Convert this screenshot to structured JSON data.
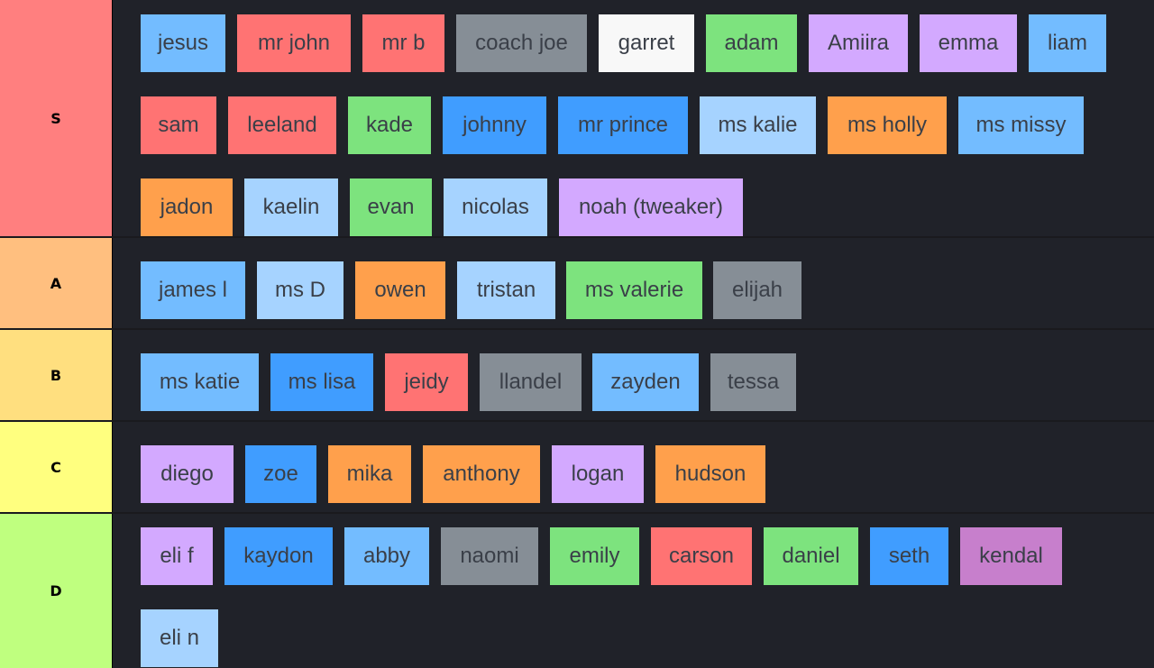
{
  "colors": {
    "background": "#202229",
    "tier_S": "#ff7f7f",
    "tier_A": "#ffbf7f",
    "tier_B": "#ffdf7f",
    "tier_C": "#ffff7f",
    "tier_D": "#bfff7f",
    "chip_red": "#ff7373",
    "chip_blue": "#73bcff",
    "chip_darkblue": "#409dff",
    "chip_lightblue": "#a6d3ff",
    "chip_gray": "#868e96",
    "chip_white": "#f8f8f8",
    "chip_green": "#7de37e",
    "chip_purple": "#d3a9ff",
    "chip_orange": "#ffa04c",
    "chip_mauve": "#c77fcc"
  },
  "tiers": [
    {
      "label": "S",
      "items": [
        {
          "name": "jesus",
          "color": "#73bcff"
        },
        {
          "name": "mr john",
          "color": "#ff7373"
        },
        {
          "name": "mr b",
          "color": "#ff7373"
        },
        {
          "name": "coach joe",
          "color": "#868e96"
        },
        {
          "name": "garret",
          "color": "#f8f8f8"
        },
        {
          "name": "adam",
          "color": "#7de37e"
        },
        {
          "name": "Amiira",
          "color": "#d3a9ff"
        },
        {
          "name": "emma",
          "color": "#d3a9ff"
        },
        {
          "name": "liam",
          "color": "#73bcff"
        },
        {
          "name": "sam",
          "color": "#ff7373"
        },
        {
          "name": "leeland",
          "color": "#ff7373"
        },
        {
          "name": "kade",
          "color": "#7de37e"
        },
        {
          "name": "johnny",
          "color": "#409dff"
        },
        {
          "name": "mr prince",
          "color": "#409dff"
        },
        {
          "name": "ms kalie",
          "color": "#a6d3ff"
        },
        {
          "name": "ms holly",
          "color": "#ffa04c"
        },
        {
          "name": "ms missy",
          "color": "#73bcff"
        },
        {
          "name": "jadon",
          "color": "#ffa04c"
        },
        {
          "name": "kaelin",
          "color": "#a6d3ff"
        },
        {
          "name": "evan",
          "color": "#7de37e"
        },
        {
          "name": "nicolas",
          "color": "#a6d3ff"
        },
        {
          "name": "noah (tweaker)",
          "color": "#d3a9ff"
        }
      ]
    },
    {
      "label": "A",
      "items": [
        {
          "name": "james l",
          "color": "#73bcff"
        },
        {
          "name": "ms D",
          "color": "#a6d3ff"
        },
        {
          "name": "owen",
          "color": "#ffa04c"
        },
        {
          "name": "tristan",
          "color": "#a6d3ff"
        },
        {
          "name": "ms valerie",
          "color": "#7de37e"
        },
        {
          "name": "elijah",
          "color": "#868e96"
        }
      ]
    },
    {
      "label": "B",
      "items": [
        {
          "name": "ms katie",
          "color": "#73bcff"
        },
        {
          "name": "ms lisa",
          "color": "#409dff"
        },
        {
          "name": "jeidy",
          "color": "#ff7373"
        },
        {
          "name": "llandel",
          "color": "#868e96"
        },
        {
          "name": "zayden",
          "color": "#73bcff"
        },
        {
          "name": "tessa",
          "color": "#868e96"
        }
      ]
    },
    {
      "label": "C",
      "items": [
        {
          "name": "diego",
          "color": "#d3a9ff"
        },
        {
          "name": "zoe",
          "color": "#409dff"
        },
        {
          "name": "mika",
          "color": "#ffa04c"
        },
        {
          "name": "anthony",
          "color": "#ffa04c"
        },
        {
          "name": "logan",
          "color": "#d3a9ff"
        },
        {
          "name": "hudson",
          "color": "#ffa04c"
        }
      ]
    },
    {
      "label": "D",
      "items": [
        {
          "name": "eli f",
          "color": "#d3a9ff"
        },
        {
          "name": "kaydon",
          "color": "#409dff"
        },
        {
          "name": "abby",
          "color": "#73bcff"
        },
        {
          "name": "naomi",
          "color": "#868e96"
        },
        {
          "name": "emily",
          "color": "#7de37e"
        },
        {
          "name": "carson",
          "color": "#ff7373"
        },
        {
          "name": "daniel",
          "color": "#7de37e"
        },
        {
          "name": "seth",
          "color": "#409dff"
        },
        {
          "name": "kendal",
          "color": "#c77fcc"
        },
        {
          "name": "eli n",
          "color": "#a6d3ff"
        }
      ]
    }
  ]
}
